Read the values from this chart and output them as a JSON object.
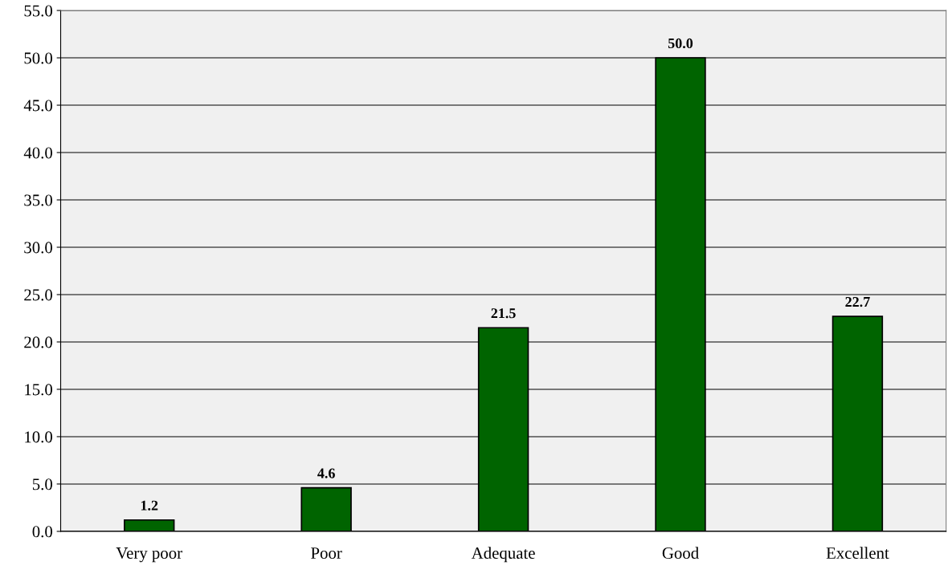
{
  "chart_data": {
    "type": "bar",
    "categories": [
      "Very poor",
      "Poor",
      "Adequate",
      "Good",
      "Excellent"
    ],
    "values": [
      1.2,
      4.6,
      21.5,
      50.0,
      22.7
    ],
    "color": "#006400",
    "ylim": [
      0,
      55
    ],
    "yticks": [
      {
        "value": 0,
        "label": "0.0"
      },
      {
        "value": 5,
        "label": "5.0"
      },
      {
        "value": 10,
        "label": "10.0"
      },
      {
        "value": 15,
        "label": "15.0"
      },
      {
        "value": 20,
        "label": "20.0"
      },
      {
        "value": 25,
        "label": "25.0"
      },
      {
        "value": 30,
        "label": "30.0"
      },
      {
        "value": 35,
        "label": "35.0"
      },
      {
        "value": 40,
        "label": "40.0"
      },
      {
        "value": 45,
        "label": "45.0"
      },
      {
        "value": 50,
        "label": "50.0"
      },
      {
        "value": 55,
        "label": "55.0"
      }
    ],
    "value_labels": [
      "1.2",
      "4.6",
      "21.5",
      "50.0",
      "22.7"
    ],
    "grid": "y",
    "legend": false
  }
}
